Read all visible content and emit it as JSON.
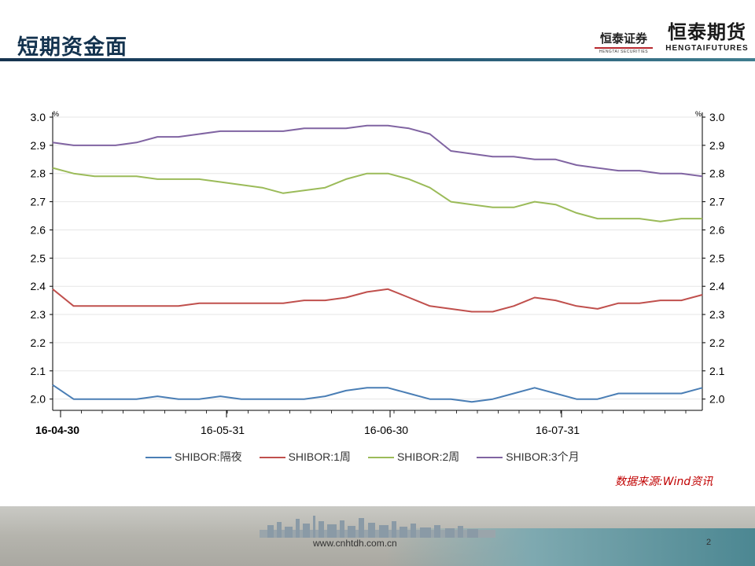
{
  "header": {
    "title": "短期资金面",
    "logo_securities_cn": "恒泰证券",
    "logo_securities_en": "HENGTAI SECURITIES",
    "logo_futures_cn": "恒泰期货",
    "logo_futures_en": "HENGTAIFUTURES"
  },
  "chart_data": {
    "type": "line",
    "left_unit": "%",
    "right_unit": "%",
    "ylim": [
      1.96,
      3.0
    ],
    "y_ticks": [
      "3.0",
      "2.9",
      "2.8",
      "2.7",
      "2.6",
      "2.5",
      "2.4",
      "2.3",
      "2.2",
      "2.1",
      "2.0"
    ],
    "x_tick_labels": [
      "16-04-30",
      "16-05-31",
      "16-06-30",
      "16-07-31"
    ],
    "grid": true,
    "legend_position": "bottom",
    "series": [
      {
        "name": "SHIBOR:隔夜",
        "color": "#4a7eb5",
        "values": [
          2.05,
          2.0,
          2.0,
          2.0,
          2.0,
          2.01,
          2.0,
          2.0,
          2.01,
          2.0,
          2.0,
          2.0,
          2.0,
          2.01,
          2.03,
          2.04,
          2.04,
          2.02,
          2.0,
          2.0,
          1.99,
          2.0,
          2.02,
          2.04,
          2.02,
          2.0,
          2.0,
          2.02,
          2.02,
          2.02,
          2.02,
          2.04
        ]
      },
      {
        "name": "SHIBOR:1周",
        "color": "#c0504d",
        "values": [
          2.39,
          2.33,
          2.33,
          2.33,
          2.33,
          2.33,
          2.33,
          2.34,
          2.34,
          2.34,
          2.34,
          2.34,
          2.35,
          2.35,
          2.36,
          2.38,
          2.39,
          2.36,
          2.33,
          2.32,
          2.31,
          2.31,
          2.33,
          2.36,
          2.35,
          2.33,
          2.32,
          2.34,
          2.34,
          2.35,
          2.35,
          2.37
        ]
      },
      {
        "name": "SHIBOR:2周",
        "color": "#9bbb59",
        "values": [
          2.82,
          2.8,
          2.79,
          2.79,
          2.79,
          2.78,
          2.78,
          2.78,
          2.77,
          2.76,
          2.75,
          2.73,
          2.74,
          2.75,
          2.78,
          2.8,
          2.8,
          2.78,
          2.75,
          2.7,
          2.69,
          2.68,
          2.68,
          2.7,
          2.69,
          2.66,
          2.64,
          2.64,
          2.64,
          2.63,
          2.64,
          2.64
        ]
      },
      {
        "name": "SHIBOR:3个月",
        "color": "#8064a2",
        "values": [
          2.91,
          2.9,
          2.9,
          2.9,
          2.91,
          2.93,
          2.93,
          2.94,
          2.95,
          2.95,
          2.95,
          2.95,
          2.96,
          2.96,
          2.96,
          2.97,
          2.97,
          2.96,
          2.94,
          2.88,
          2.87,
          2.86,
          2.86,
          2.85,
          2.85,
          2.83,
          2.82,
          2.81,
          2.81,
          2.8,
          2.8,
          2.79
        ]
      }
    ]
  },
  "source_text": "数据来源:Wind资讯",
  "footer": {
    "url": "www.cnhtdh.com.cn",
    "page_number": "2"
  }
}
